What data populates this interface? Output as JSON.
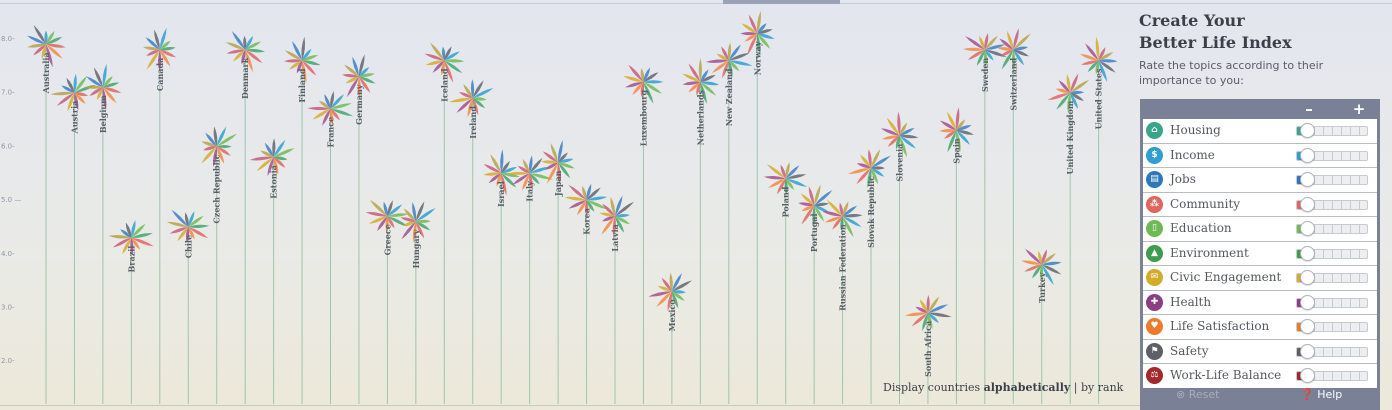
{
  "axis": {
    "ticks": [
      8.0,
      7.0,
      6.0,
      5.0,
      4.0,
      3.0,
      2.0
    ],
    "tick_labels": [
      "8.0-",
      "7.0-",
      "6.0-",
      "5.0 —",
      "4.0-",
      "3.0-",
      "2.0-"
    ],
    "ylim": [
      1.2,
      8.6
    ]
  },
  "topic_colors": [
    "#2f9fd0",
    "#6fba54",
    "#3fa56b",
    "#e0655f",
    "#f28a40",
    "#a54c8f",
    "#d4ac2a",
    "#c85a7a",
    "#b7a246",
    "#3a7fc4",
    "#636570"
  ],
  "countries": [
    {
      "name": "Australia",
      "score": 7.9
    },
    {
      "name": "Austria",
      "score": 7.0
    },
    {
      "name": "Belgium",
      "score": 7.1
    },
    {
      "name": "Brazil",
      "score": 4.3
    },
    {
      "name": "Canada",
      "score": 7.8
    },
    {
      "name": "Chile",
      "score": 4.5
    },
    {
      "name": "Czech Republic",
      "score": 6.0
    },
    {
      "name": "Denmark",
      "score": 7.8
    },
    {
      "name": "Estonia",
      "score": 5.8
    },
    {
      "name": "Finland",
      "score": 7.6
    },
    {
      "name": "France",
      "score": 6.7
    },
    {
      "name": "Germany",
      "score": 7.3
    },
    {
      "name": "Greece",
      "score": 4.7
    },
    {
      "name": "Hungary",
      "score": 4.6
    },
    {
      "name": "Iceland",
      "score": 7.6
    },
    {
      "name": "Ireland",
      "score": 6.9
    },
    {
      "name": "Israel",
      "score": 5.5
    },
    {
      "name": "Italy",
      "score": 5.5
    },
    {
      "name": "Japan",
      "score": 5.7
    },
    {
      "name": "Korea",
      "score": 5.0
    },
    {
      "name": "Latvia",
      "score": 4.7
    },
    {
      "name": "Luxembourg",
      "score": 7.2
    },
    {
      "name": "Mexico",
      "score": 3.3
    },
    {
      "name": "Netherlands",
      "score": 7.2
    },
    {
      "name": "New Zealand",
      "score": 7.6
    },
    {
      "name": "Norway",
      "score": 8.1
    },
    {
      "name": "Poland",
      "score": 5.4
    },
    {
      "name": "Portugal",
      "score": 4.9
    },
    {
      "name": "Russian Federation",
      "score": 4.7
    },
    {
      "name": "Slovak Republic",
      "score": 5.6
    },
    {
      "name": "Slovenia",
      "score": 6.2
    },
    {
      "name": "South Africa",
      "score": 2.9
    },
    {
      "name": "Spain",
      "score": 6.3
    },
    {
      "name": "Sweden",
      "score": 7.8
    },
    {
      "name": "Switzerland",
      "score": 7.8
    },
    {
      "name": "Turkey",
      "score": 3.8
    },
    {
      "name": "United Kingdom",
      "score": 7.0
    },
    {
      "name": "United States",
      "score": 7.6
    }
  ],
  "panel": {
    "title_line1": "Create Your",
    "title_line2": "Better Life Index",
    "subtitle": "Rate the topics according to their importance to you:",
    "minus_label": "–",
    "plus_label": "+",
    "topics": [
      {
        "label": "Housing",
        "color": "#3aa58a",
        "icon": "house-icon",
        "glyph": "⌂",
        "value": 0.08
      },
      {
        "label": "Income",
        "color": "#2f9fd0",
        "icon": "money-icon",
        "glyph": "$",
        "value": 0.08
      },
      {
        "label": "Jobs",
        "color": "#2c78b8",
        "icon": "briefcase-icon",
        "glyph": "▤",
        "value": 0.08
      },
      {
        "label": "Community",
        "color": "#e0655f",
        "icon": "people-icon",
        "glyph": "⁂",
        "value": 0.08
      },
      {
        "label": "Education",
        "color": "#6fba54",
        "icon": "book-icon",
        "glyph": "▯",
        "value": 0.08
      },
      {
        "label": "Environment",
        "color": "#3f9b4f",
        "icon": "tree-icon",
        "glyph": "▲",
        "value": 0.08
      },
      {
        "label": "Civic Engagement",
        "color": "#d4ac2a",
        "icon": "envelope-icon",
        "glyph": "✉",
        "value": 0.08
      },
      {
        "label": "Health",
        "color": "#8a3e84",
        "icon": "cross-icon",
        "glyph": "✚",
        "value": 0.08
      },
      {
        "label": "Life Satisfaction",
        "color": "#f07a2c",
        "icon": "heart-icon",
        "glyph": "♥",
        "value": 0.08
      },
      {
        "label": "Safety",
        "color": "#5d6067",
        "icon": "runner-icon",
        "glyph": "⚑",
        "value": 0.08
      },
      {
        "label": "Work-Life Balance",
        "color": "#a3282b",
        "icon": "scale-icon",
        "glyph": "⚖",
        "value": 0.08
      }
    ],
    "reset_label": "Reset",
    "help_label": "Help"
  },
  "sort": {
    "prefix": "Display countries",
    "alphabetical": "alphabetically",
    "separator": "|",
    "rank": "by rank"
  }
}
